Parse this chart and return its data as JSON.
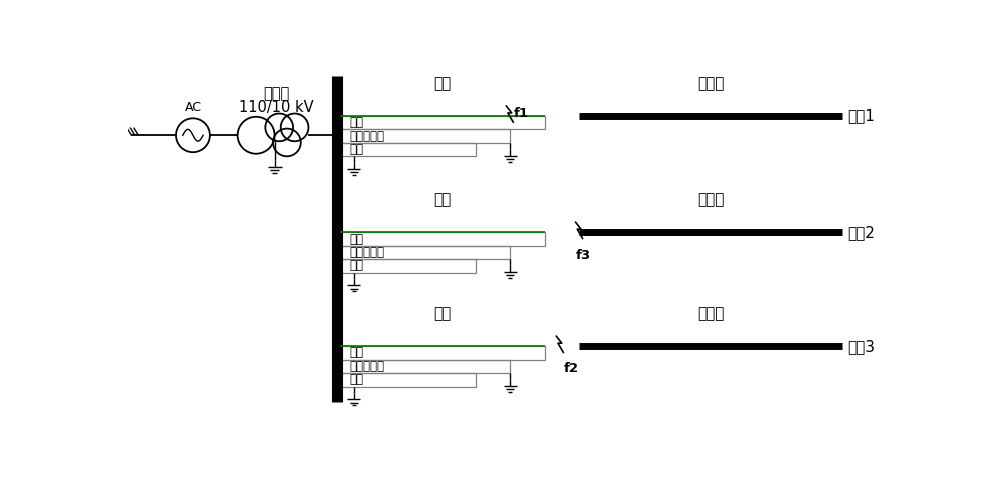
{
  "bg_color": "#ffffff",
  "line_color": "#000000",
  "gray_color": "#808080",
  "green_color": "#007700",
  "transformer_label": "变压器",
  "transformer_kv": "110/10 kV",
  "ac_label": "AC",
  "cable_label": "电缆",
  "overhead_label": "架空线",
  "conductor_label": "导体",
  "metal_shield_label": "金属屏蔽层",
  "steel_armor_label": "锂铠",
  "line1_label": "线路1",
  "line2_label": "线路2",
  "line3_label": "线路3",
  "f1_label": "f1",
  "f2_label": "f2",
  "f3_label": "f3",
  "figsize": [
    10.0,
    4.79
  ],
  "dpi": 100
}
